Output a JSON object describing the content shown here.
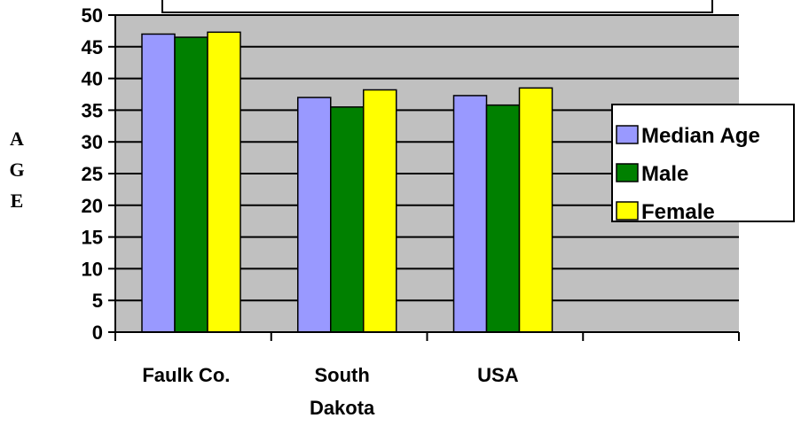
{
  "chart_data": {
    "type": "bar",
    "title": "",
    "xlabel": "",
    "ylabel": "A G E",
    "ylabel_letters": [
      "A",
      "G",
      "E"
    ],
    "categories": [
      "Faulk Co.",
      "South Dakota",
      "USA",
      ""
    ],
    "category_lines": [
      [
        "Faulk Co."
      ],
      [
        "South",
        "Dakota"
      ],
      [
        "USA"
      ],
      []
    ],
    "series": [
      {
        "name": "Median Age",
        "values": [
          47,
          37,
          37.3,
          null
        ],
        "color": "#9999ff"
      },
      {
        "name": "Male",
        "values": [
          46.5,
          35.5,
          35.8,
          null
        ],
        "color": "#008000"
      },
      {
        "name": "Female",
        "values": [
          47.3,
          38.2,
          38.5,
          null
        ],
        "color": "#ffff00"
      }
    ],
    "ylim": [
      0,
      50
    ],
    "yticks": [
      0,
      5,
      10,
      15,
      20,
      25,
      30,
      35,
      40,
      45,
      50
    ],
    "grid": true,
    "plot_background": "#c0c0c0",
    "legend_position": "right"
  }
}
